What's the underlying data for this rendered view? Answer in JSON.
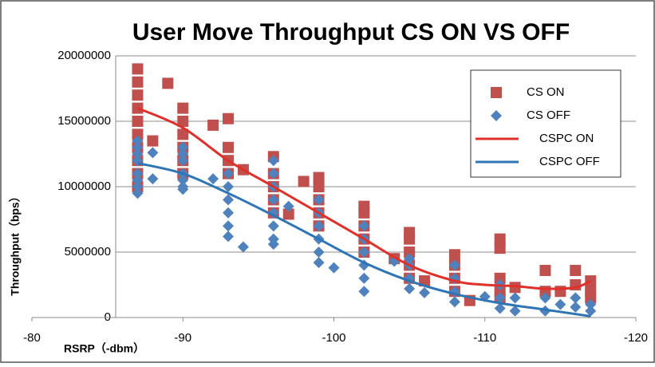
{
  "chart_data": {
    "type": "scatter",
    "title": "User Move Throughput CS ON VS OFF",
    "xlabel": "RSRP（-dbm）",
    "ylabel": "Throughput（bps）",
    "xlim": [
      -80,
      -120
    ],
    "xticks": [
      -80,
      -90,
      -100,
      -110,
      -120
    ],
    "ylim": [
      0,
      20000000
    ],
    "yticks": [
      0,
      5000000,
      10000000,
      15000000,
      20000000
    ],
    "grid": true,
    "legend": "upper right",
    "series": [
      {
        "name": "CS ON",
        "mode": "markers",
        "marker": "square",
        "color": "#c0504d",
        "x": [
          -87,
          -87,
          -87,
          -87,
          -87,
          -87,
          -87,
          -87,
          -87,
          -87,
          -88,
          -89,
          -90,
          -90,
          -90,
          -90,
          -90,
          -90,
          -92,
          -93,
          -93,
          -93,
          -93,
          -94,
          -96,
          -96,
          -96,
          -96,
          -96,
          -97,
          -98,
          -99,
          -99,
          -99,
          -99,
          -99,
          -102,
          -102,
          -102,
          -102,
          -102,
          -104,
          -105,
          -105,
          -105,
          -105,
          -105,
          -106,
          -108,
          -108,
          -108,
          -108,
          -109,
          -111,
          -111,
          -111,
          -111,
          -111,
          -112,
          -114,
          -114,
          -115,
          -116,
          -116,
          -117,
          -117,
          -117
        ],
        "values": [
          19000000,
          18000000,
          17000000,
          16000000,
          15000000,
          14000000,
          13000000,
          12000000,
          11000000,
          10000000,
          13500000,
          17900000,
          16000000,
          15000000,
          14000000,
          13000000,
          12000000,
          11000000,
          14700000,
          15200000,
          13000000,
          12000000,
          11000000,
          11300000,
          12300000,
          11000000,
          10000000,
          9000000,
          8000000,
          7900000,
          10400000,
          10700000,
          10000000,
          9000000,
          8000000,
          7000000,
          8500000,
          8000000,
          7000000,
          6000000,
          5000000,
          4500000,
          6500000,
          6000000,
          5000000,
          4000000,
          3000000,
          2800000,
          4800000,
          4000000,
          3000000,
          2000000,
          1300000,
          6000000,
          5300000,
          3000000,
          2000000,
          1500000,
          2300000,
          3600000,
          2000000,
          2000000,
          3600000,
          2500000,
          2800000,
          2000000,
          1500000
        ]
      },
      {
        "name": "CS OFF",
        "mode": "markers",
        "marker": "diamond",
        "color": "#4f81bd",
        "x": [
          -87,
          -87,
          -87,
          -87,
          -87,
          -87,
          -87,
          -87,
          -88,
          -88,
          -90,
          -90,
          -90,
          -90,
          -90,
          -90,
          -90,
          -92,
          -93,
          -93,
          -93,
          -93,
          -93,
          -93,
          -94,
          -96,
          -96,
          -96,
          -96,
          -96,
          -96,
          -96,
          -96,
          -97,
          -99,
          -99,
          -99,
          -99,
          -99,
          -99,
          -100,
          -102,
          -102,
          -102,
          -102,
          -102,
          -102,
          -104,
          -105,
          -105,
          -105,
          -105,
          -106,
          -108,
          -108,
          -108,
          -108,
          -110,
          -111,
          -111,
          -111,
          -112,
          -112,
          -114,
          -114,
          -115,
          -116,
          -116,
          -117,
          -117
        ],
        "values": [
          13500000,
          13000000,
          12500000,
          12000000,
          11000000,
          10500000,
          10000000,
          9500000,
          12600000,
          10600000,
          13000000,
          12500000,
          12000000,
          11000000,
          10500000,
          10000000,
          9800000,
          10600000,
          11000000,
          10000000,
          9000000,
          8000000,
          7000000,
          6200000,
          5400000,
          12000000,
          11000000,
          10000000,
          9000000,
          8000000,
          7000000,
          6000000,
          5600000,
          8500000,
          9000000,
          8000000,
          7000000,
          6000000,
          5000000,
          4200000,
          3800000,
          7000000,
          6000000,
          5000000,
          4000000,
          3000000,
          2000000,
          4300000,
          4500000,
          4000000,
          3000000,
          2200000,
          1900000,
          4000000,
          3000000,
          2000000,
          1200000,
          1600000,
          2500000,
          1500000,
          700000,
          1500000,
          500000,
          1500000,
          500000,
          1000000,
          1500000,
          800000,
          1000000,
          500000
        ]
      },
      {
        "name": "CSPC ON",
        "mode": "line",
        "color": "#e0302a",
        "x": [
          -87,
          -90,
          -93,
          -96,
          -99,
          -102,
          -105,
          -108,
          -110,
          -112,
          -114,
          -116,
          -117
        ],
        "values": [
          16000000,
          14500000,
          12000000,
          10000000,
          8000000,
          6000000,
          4000000,
          2800000,
          2500000,
          2400000,
          2200000,
          2300000,
          2800000
        ]
      },
      {
        "name": "CSPC OFF",
        "mode": "line",
        "color": "#2e75b6",
        "x": [
          -87,
          -90,
          -93,
          -96,
          -99,
          -102,
          -105,
          -108,
          -111,
          -114,
          -117
        ],
        "values": [
          11800000,
          11000000,
          9500000,
          7800000,
          6000000,
          4200000,
          2800000,
          1800000,
          1100000,
          600000,
          100000
        ]
      }
    ]
  }
}
